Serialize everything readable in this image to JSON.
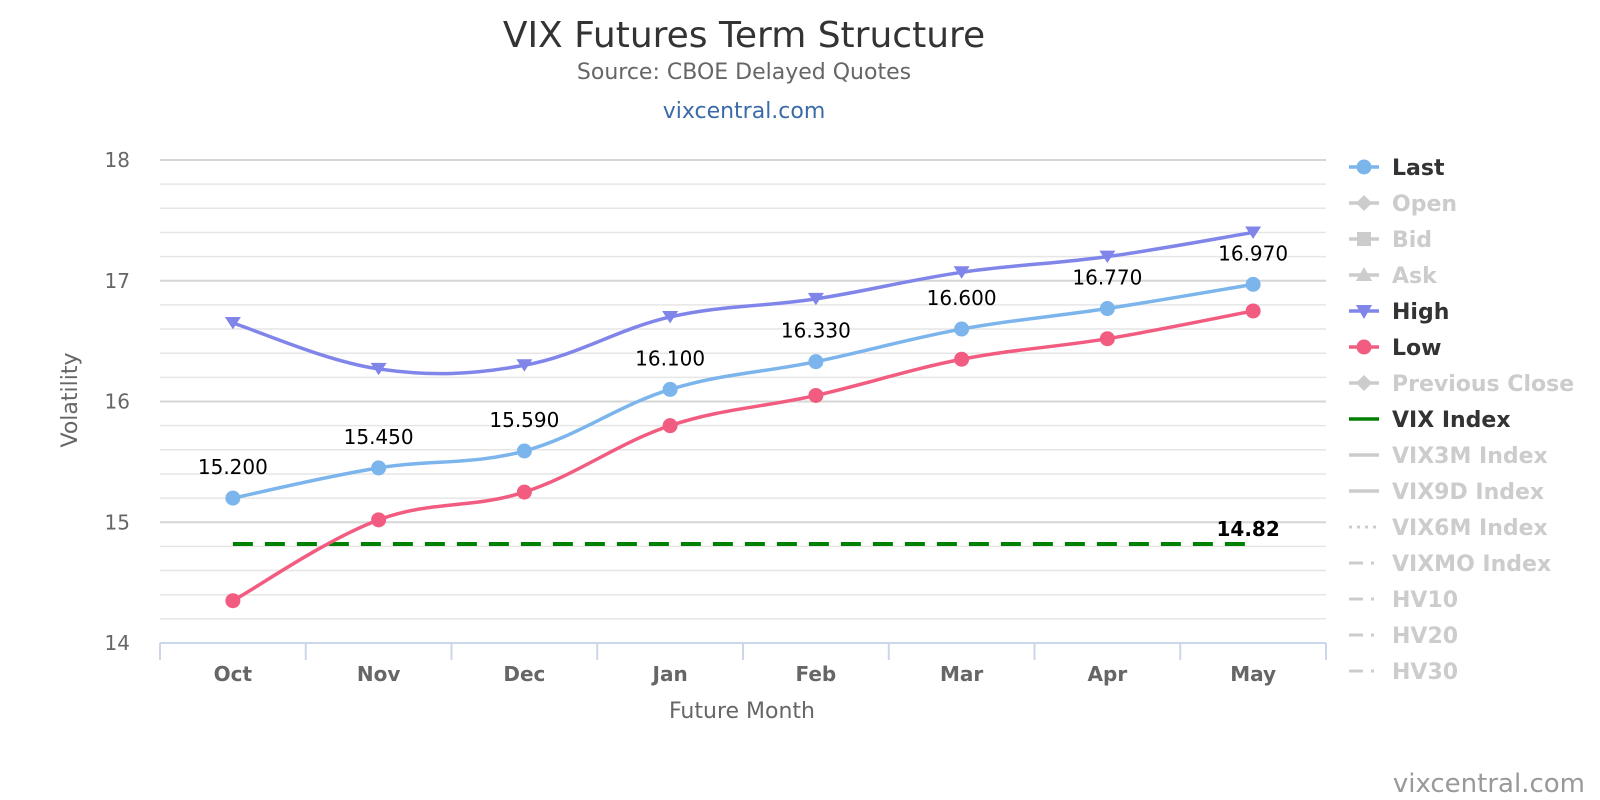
{
  "chart_data": {
    "type": "line",
    "title": "VIX Futures Term Structure",
    "subtitle": "Source: CBOE Delayed Quotes",
    "subtitle_link": "vixcentral.com",
    "xlabel": "Future Month",
    "ylabel": "Volatility",
    "categories": [
      "Oct",
      "Nov",
      "Dec",
      "Jan",
      "Feb",
      "Mar",
      "Apr",
      "May"
    ],
    "ylim": [
      14,
      18
    ],
    "yticks": [
      14,
      15,
      16,
      17,
      18
    ],
    "ytick_labels": [
      "14",
      "15",
      "16",
      "17",
      "18"
    ],
    "grid": true,
    "legend_position": "right",
    "series": [
      {
        "name": "Last",
        "color": "#7cb5ec",
        "marker": "circle",
        "values": [
          15.2,
          15.45,
          15.59,
          16.1,
          16.33,
          16.6,
          16.77,
          16.97
        ],
        "labels": [
          "15.200",
          "15.450",
          "15.590",
          "16.100",
          "16.330",
          "16.600",
          "16.770",
          "16.970"
        ]
      },
      {
        "name": "High",
        "color": "#8085e9",
        "marker": "triangle-down",
        "values": [
          16.65,
          16.27,
          16.3,
          16.7,
          16.85,
          17.07,
          17.2,
          17.4
        ]
      },
      {
        "name": "Low",
        "color": "#f15c80",
        "marker": "circle",
        "values": [
          14.35,
          15.02,
          15.25,
          15.8,
          16.05,
          16.35,
          16.52,
          16.75
        ]
      },
      {
        "name": "VIX Index",
        "color": "#008000",
        "dash": true,
        "values": [
          14.82,
          14.82,
          14.82,
          14.82,
          14.82,
          14.82,
          14.82,
          14.82
        ],
        "end_label": "14.82"
      }
    ],
    "legend": [
      {
        "name": "Last",
        "active": true,
        "color": "#7cb5ec",
        "symbol": "circle"
      },
      {
        "name": "Open",
        "active": false,
        "color": "#cccccc",
        "symbol": "diamond"
      },
      {
        "name": "Bid",
        "active": false,
        "color": "#cccccc",
        "symbol": "square"
      },
      {
        "name": "Ask",
        "active": false,
        "color": "#cccccc",
        "symbol": "triangle"
      },
      {
        "name": "High",
        "active": true,
        "color": "#8085e9",
        "symbol": "triangle-down"
      },
      {
        "name": "Low",
        "active": true,
        "color": "#f15c80",
        "symbol": "circle"
      },
      {
        "name": "Previous Close",
        "active": false,
        "color": "#cccccc",
        "symbol": "diamond"
      },
      {
        "name": "VIX Index",
        "active": true,
        "color": "#008000",
        "symbol": "line"
      },
      {
        "name": "VIX3M Index",
        "active": false,
        "color": "#cccccc",
        "symbol": "line"
      },
      {
        "name": "VIX9D Index",
        "active": false,
        "color": "#cccccc",
        "symbol": "line"
      },
      {
        "name": "VIX6M Index",
        "active": false,
        "color": "#cccccc",
        "symbol": "dot"
      },
      {
        "name": "VIXMO Index",
        "active": false,
        "color": "#cccccc",
        "symbol": "dashdot"
      },
      {
        "name": "HV10",
        "active": false,
        "color": "#cccccc",
        "symbol": "dashdot"
      },
      {
        "name": "HV20",
        "active": false,
        "color": "#cccccc",
        "symbol": "dashdot"
      },
      {
        "name": "HV30",
        "active": false,
        "color": "#cccccc",
        "symbol": "dashdot"
      }
    ]
  },
  "credit": "vixcentral.com"
}
